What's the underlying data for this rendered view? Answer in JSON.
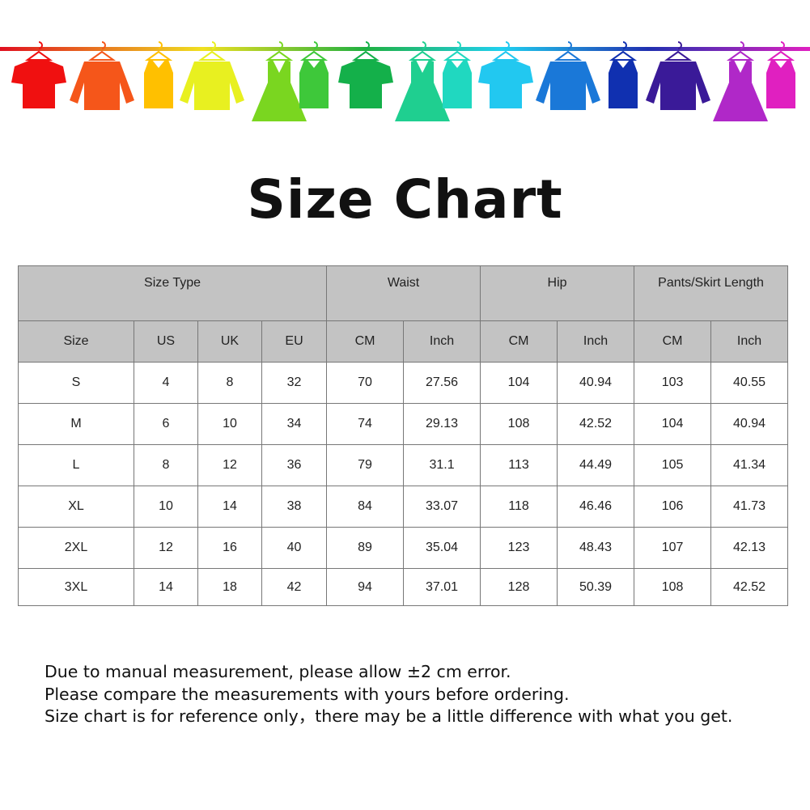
{
  "title": "Size Chart",
  "banner": {
    "colors": [
      "#f01010",
      "#f5561a",
      "#ffc000",
      "#e8f020",
      "#7ad620",
      "#3ec83a",
      "#14b04a",
      "#1fcf90",
      "#20d8c0",
      "#22c8f0",
      "#1a78d8",
      "#1030b0",
      "#3a1a98",
      "#b028c8",
      "#e020c0"
    ]
  },
  "table": {
    "group_headers": [
      "Size Type",
      "Waist",
      "Hip",
      "Pants/Skirt Length"
    ],
    "sub_headers": [
      "Size",
      "US",
      "UK",
      "EU",
      "CM",
      "Inch",
      "CM",
      "Inch",
      "CM",
      "Inch"
    ],
    "rows": [
      [
        "S",
        "4",
        "8",
        "32",
        "70",
        "27.56",
        "104",
        "40.94",
        "103",
        "40.55"
      ],
      [
        "M",
        "6",
        "10",
        "34",
        "74",
        "29.13",
        "108",
        "42.52",
        "104",
        "40.94"
      ],
      [
        "L",
        "8",
        "12",
        "36",
        "79",
        "31.1",
        "113",
        "44.49",
        "105",
        "41.34"
      ],
      [
        "XL",
        "10",
        "14",
        "38",
        "84",
        "33.07",
        "118",
        "46.46",
        "106",
        "41.73"
      ],
      [
        "2XL",
        "12",
        "16",
        "40",
        "89",
        "35.04",
        "123",
        "48.43",
        "107",
        "42.13"
      ],
      [
        "3XL",
        "14",
        "18",
        "42",
        "94",
        "37.01",
        "128",
        "50.39",
        "108",
        "42.52"
      ]
    ]
  },
  "notes": [
    "Due to manual measurement, please allow ±2 cm error.",
    "Please compare the measurements with yours before ordering.",
    "Size chart is for reference only，there may be a little difference with what you get."
  ]
}
